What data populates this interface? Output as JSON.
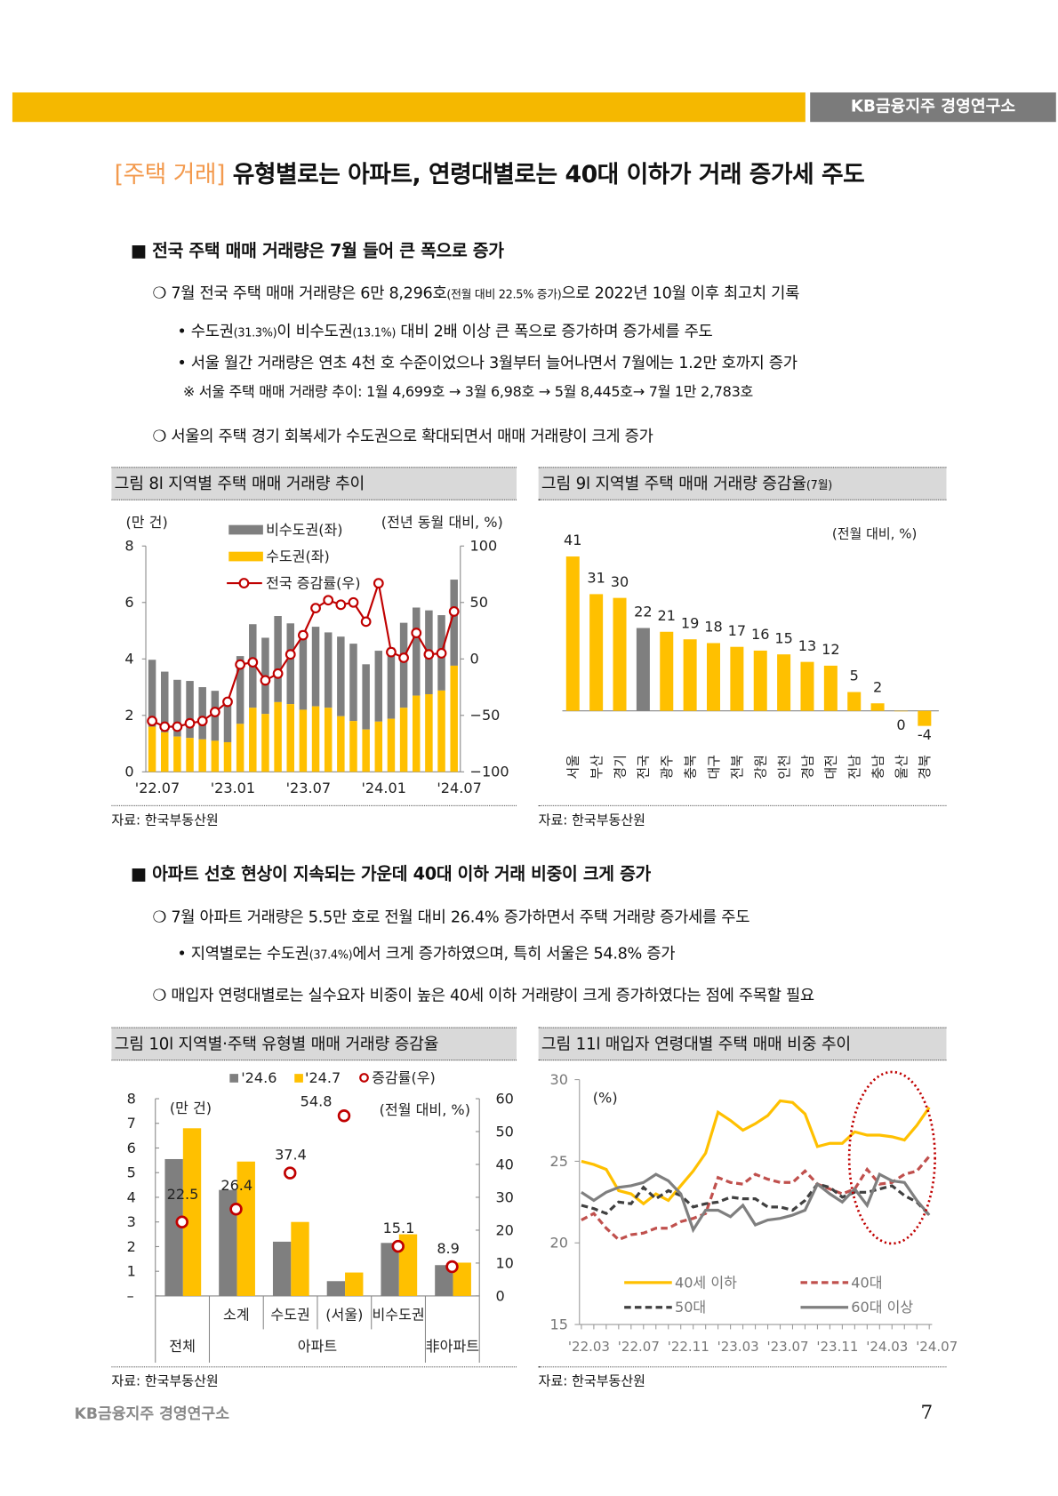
{
  "header": {
    "logo": "KB금융지주 경영연구소"
  },
  "title": {
    "tag": "[주택 거래]",
    "text": " 유형별로는 아파트, 연령대별로는 40대 이하가 거래 증가세 주도"
  },
  "section1": {
    "heading": "■  전국 주택 매매 거래량은 7월 들어 큰 폭으로 증가",
    "b1": "❍ 7월 전국 주택 매매 거래량은 6만 8,296호",
    "b1_small": "(전월 대비 22.5% 증가)",
    "b1_tail": "으로 2022년 10월 이후 최고치 기록",
    "b1a": "• 수도권",
    "b1a_s1": "(31.3%)",
    "b1a_m": "이 비수도권",
    "b1a_s2": "(13.1%)",
    "b1a_t": " 대비 2배 이상 큰 폭으로 증가하며 증가세를 주도",
    "b1b": "• 서울 월간 거래량은 연초 4천 호 수준이었으나 3월부터 늘어나면서 7월에는 1.2만 호까지 증가",
    "note": "※  서울 주택 매매 거래량 추이: 1월 4,699호 → 3월 6,98호 → 5월 8,445호→ 7월 1만 2,783호",
    "b2": "❍ 서울의 주택 경기 회복세가 수도권으로 확대되면서 매매 거래량이 크게 증가"
  },
  "section2": {
    "heading": "■   아파트 선호 현상이 지속되는 가운데 40대 이하 거래 비중이 크게 증가",
    "b1": "❍ 7월 아파트 거래량은 5.5만 호로 전월 대비 26.4% 증가하면서 주택 거래량 증가세를 주도",
    "b1a": "• 지역별로는 수도권",
    "b1a_s": "(37.4%)",
    "b1a_t": "에서 크게 증가하였으며, 특히 서울은 54.8% 증가",
    "b2": "❍ 매입자 연령대별로는 실수요자 비중이 높은 40세 이하 거래량이 크게 증가하였다는 점에 주목할 필요"
  },
  "figures": {
    "fig8": {
      "title": "그림 8l 지역별 주택 매매 거래량 추이",
      "source": "자료: 한국부동산원"
    },
    "fig9": {
      "title": "그림 9l 지역별 주택 매매 거래량 증감율",
      "title_small": "(7월)",
      "source": "자료: 한국부동산원"
    },
    "fig10": {
      "title": "그림 10l 지역별·주택 유형별 매매 거래량 증감율",
      "source": "자료: 한국부동산원"
    },
    "fig11": {
      "title": "그림 11l 매입자 연령대별 주택 매매 비중 추이",
      "source": "자료: 한국부동산원"
    }
  },
  "chart_data": [
    {
      "type": "bar",
      "stacked": true,
      "left_unit": "(만 건)",
      "right_unit": "(전년 동월 대비, %)",
      "ylim": [
        0,
        8
      ],
      "yticks": [
        0,
        2,
        4,
        6,
        8
      ],
      "y2lim": [
        -100,
        100
      ],
      "y2ticks": [
        "−100",
        "−50",
        "0",
        "50",
        "100"
      ],
      "xticks": [
        "'22.07",
        "'23.01",
        "'23.07",
        "'24.01",
        "'24.07"
      ],
      "x": [
        "22.07",
        "22.08",
        "22.09",
        "22.10",
        "22.11",
        "22.12",
        "23.01",
        "23.02",
        "23.03",
        "23.04",
        "23.05",
        "23.06",
        "23.07",
        "23.08",
        "23.09",
        "23.10",
        "23.11",
        "23.12",
        "24.01",
        "24.02",
        "24.03",
        "24.04",
        "24.05",
        "24.06",
        "24.07"
      ],
      "series": [
        {
          "name": "비수도권(좌)",
          "color": "#7f7f7f",
          "totals": [
            3.97,
            3.55,
            3.26,
            3.22,
            3.0,
            2.87,
            2.4,
            4.1,
            5.23,
            4.75,
            5.52,
            5.26,
            5.0,
            5.14,
            4.94,
            4.79,
            4.54,
            3.81,
            4.29,
            4.4,
            5.28,
            5.82,
            5.72,
            5.55,
            6.81
          ]
        },
        {
          "name": "수도권(좌)",
          "color": "#FFC000",
          "values": [
            1.6,
            1.4,
            1.25,
            1.2,
            1.15,
            1.1,
            1.05,
            1.7,
            2.27,
            2.05,
            2.47,
            2.4,
            2.2,
            2.32,
            2.27,
            1.97,
            1.8,
            1.5,
            1.78,
            1.88,
            2.27,
            2.7,
            2.75,
            2.88,
            3.76
          ]
        },
        {
          "name": "전국 증감률(우)",
          "color": "#C00000",
          "axis": "right",
          "values": [
            -55,
            -60,
            -60,
            -57,
            -55,
            -47,
            -38,
            -5,
            -3,
            -19,
            -13,
            4,
            21,
            45,
            52,
            48,
            50,
            33,
            67,
            6,
            1,
            23,
            4,
            5,
            42
          ]
        }
      ]
    },
    {
      "type": "bar",
      "unit": "(전월 대비, %)",
      "categories": [
        "서울",
        "부산",
        "경기",
        "전국",
        "광주",
        "충북",
        "대구",
        "전북",
        "강원",
        "인천",
        "경남",
        "대전",
        "전남",
        "충남",
        "울산",
        "경북"
      ],
      "values": [
        41,
        31,
        30,
        22,
        21,
        19,
        18,
        17,
        16,
        15,
        13,
        12,
        5,
        2,
        0,
        -4
      ],
      "colors": {
        "default": "#FFC000",
        "highlight": "#7f7f7f",
        "highlight_category": "전국"
      }
    },
    {
      "type": "bar",
      "left_unit": "(만 건)",
      "right_unit": "(전월 대비, %)",
      "ylim": [
        0,
        8
      ],
      "yticks": [
        "–",
        "1",
        "2",
        "3",
        "4",
        "5",
        "6",
        "7",
        "8"
      ],
      "y2lim": [
        0,
        60
      ],
      "y2ticks": [
        "0",
        "10",
        "20",
        "30",
        "40",
        "50",
        "60"
      ],
      "categories": [
        "전체",
        "소계",
        "수도권",
        "(서울)",
        "비수도권",
        "非아파트"
      ],
      "group_label": "아파트",
      "series": [
        {
          "name": "'24.6",
          "color": "#7f7f7f",
          "values": [
            5.55,
            4.3,
            2.2,
            0.6,
            2.15,
            1.25
          ]
        },
        {
          "name": "'24.7",
          "color": "#FFC000",
          "values": [
            6.8,
            5.45,
            3.0,
            0.95,
            2.5,
            1.35
          ]
        },
        {
          "name": "증감률(우)",
          "color": "#C00000",
          "axis": "right",
          "values": [
            22.5,
            26.4,
            37.4,
            54.8,
            15.1,
            8.9
          ],
          "labels": [
            "22.5",
            "26.4",
            "37.4",
            "54.8",
            "15.1",
            "8.9"
          ]
        }
      ]
    },
    {
      "type": "line",
      "unit": "(%)",
      "ylim": [
        15,
        30
      ],
      "yticks": [
        "15",
        "20",
        "25",
        "30"
      ],
      "xticks": [
        "'22.03",
        "'22.07",
        "'22.11",
        "'23.03",
        "'23.07",
        "'23.11",
        "'24.03",
        "'24.07"
      ],
      "series": [
        {
          "name": "40세 이하",
          "color": "#FFC000",
          "dash": false,
          "values": [
            25,
            24.8,
            24.5,
            23.2,
            23,
            22.4,
            23,
            22.6,
            23.5,
            24.4,
            25.5,
            28,
            27.5,
            26.9,
            27.3,
            27.8,
            28.7,
            28.6,
            27.9,
            25.9,
            26.1,
            26.1,
            26.8,
            26.6,
            26.6,
            26.5,
            26.3,
            27.2,
            28.3
          ]
        },
        {
          "name": "40대",
          "color": "#C0504D",
          "dash": true,
          "values": [
            21.4,
            21.8,
            20.9,
            20.2,
            20.5,
            20.6,
            20.9,
            20.9,
            21.3,
            21.5,
            21.8,
            24,
            23.7,
            23.6,
            24.2,
            23.9,
            23.7,
            23.7,
            24.4,
            23.6,
            23.3,
            23.0,
            23.3,
            24.5,
            23.6,
            23.7,
            24.2,
            24.4,
            25.3
          ]
        },
        {
          "name": "50대",
          "color": "#404040",
          "dash": true,
          "values": [
            22.3,
            22.1,
            21.8,
            22.5,
            22.4,
            23.4,
            22.7,
            23.2,
            22.9,
            22.2,
            22.4,
            22.5,
            22.8,
            22.7,
            22.7,
            22.2,
            22.2,
            22.0,
            22.6,
            23.6,
            23.4,
            22.8,
            23.1,
            23.1,
            23.3,
            23.5,
            22.9,
            22.5,
            21.7
          ]
        },
        {
          "name": "60대 이상",
          "color": "#7f7f7f",
          "dash": false,
          "values": [
            23.1,
            22.6,
            23.1,
            23.4,
            23.5,
            23.7,
            24.2,
            23.8,
            23.0,
            20.8,
            22.0,
            22.0,
            21.6,
            22.3,
            21.1,
            21.4,
            21.5,
            21.7,
            22.0,
            23.6,
            23.0,
            22.5,
            23.3,
            22.3,
            24.2,
            23.8,
            23.7,
            22.6,
            21.7
          ]
        }
      ],
      "highlight": "dotted red ellipse around latest months"
    }
  ],
  "footer": {
    "logo": "KB금융지주 경영연구소",
    "page": "7"
  }
}
